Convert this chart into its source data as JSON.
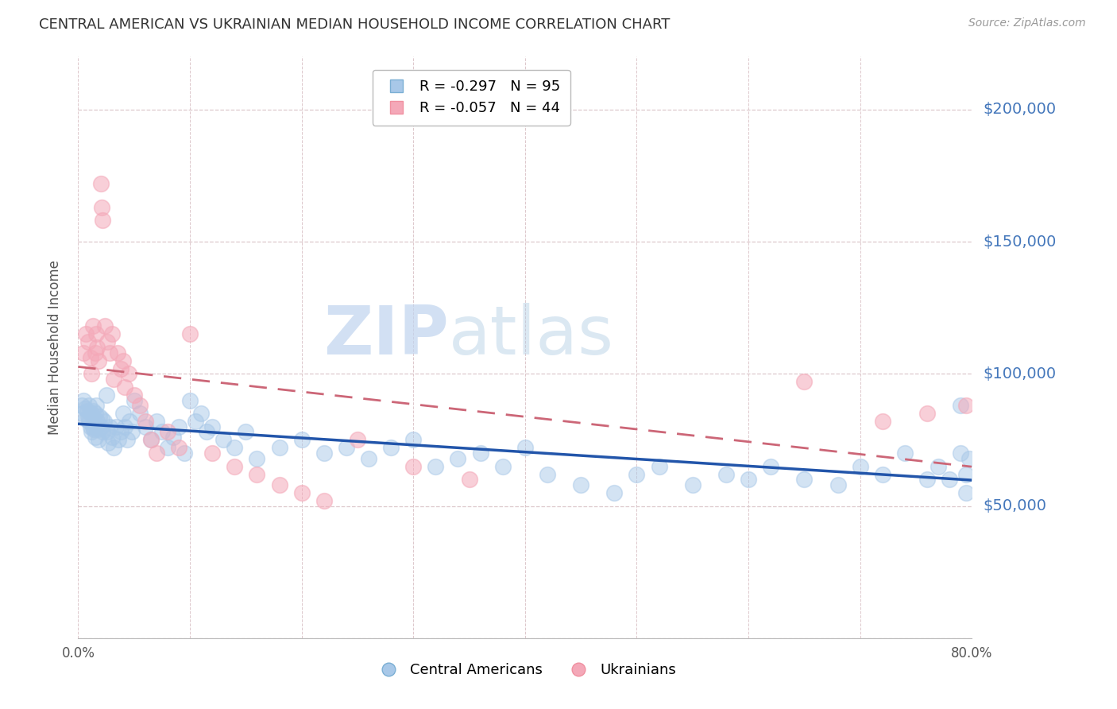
{
  "title": "CENTRAL AMERICAN VS UKRAINIAN MEDIAN HOUSEHOLD INCOME CORRELATION CHART",
  "source": "Source: ZipAtlas.com",
  "ylabel": "Median Household Income",
  "xmin": 0.0,
  "xmax": 0.8,
  "ymin": 0,
  "ymax": 220000,
  "yticks": [
    0,
    50000,
    100000,
    150000,
    200000
  ],
  "ytick_labels": [
    "",
    "$50,000",
    "$100,000",
    "$150,000",
    "$200,000"
  ],
  "xticks": [
    0.0,
    0.1,
    0.2,
    0.3,
    0.4,
    0.5,
    0.6,
    0.7,
    0.8
  ],
  "xtick_labels": [
    "0.0%",
    "",
    "",
    "",
    "",
    "",
    "",
    "",
    "80.0%"
  ],
  "watermark": "ZIPatlas",
  "blue_color": "#a8c8e8",
  "pink_color": "#f4a8b8",
  "blue_line_color": "#2255aa",
  "pink_line_color": "#cc6677",
  "title_color": "#333333",
  "axis_label_color": "#4477bb",
  "grid_color": "#ddc8cc",
  "background_color": "#ffffff",
  "central_americans_x": [
    0.003,
    0.004,
    0.005,
    0.006,
    0.007,
    0.008,
    0.009,
    0.01,
    0.01,
    0.011,
    0.012,
    0.012,
    0.013,
    0.013,
    0.014,
    0.014,
    0.015,
    0.015,
    0.016,
    0.016,
    0.017,
    0.018,
    0.018,
    0.019,
    0.02,
    0.021,
    0.022,
    0.023,
    0.025,
    0.026,
    0.027,
    0.028,
    0.03,
    0.032,
    0.034,
    0.036,
    0.038,
    0.04,
    0.042,
    0.044,
    0.046,
    0.048,
    0.05,
    0.055,
    0.06,
    0.065,
    0.07,
    0.075,
    0.08,
    0.085,
    0.09,
    0.095,
    0.1,
    0.105,
    0.11,
    0.115,
    0.12,
    0.13,
    0.14,
    0.15,
    0.16,
    0.18,
    0.2,
    0.22,
    0.24,
    0.26,
    0.28,
    0.3,
    0.32,
    0.34,
    0.36,
    0.38,
    0.4,
    0.42,
    0.45,
    0.48,
    0.5,
    0.52,
    0.55,
    0.58,
    0.6,
    0.62,
    0.65,
    0.68,
    0.7,
    0.72,
    0.74,
    0.76,
    0.77,
    0.78,
    0.79,
    0.79,
    0.795,
    0.795,
    0.798
  ],
  "central_americans_y": [
    88000,
    85000,
    90000,
    87000,
    83000,
    86000,
    84000,
    88000,
    82000,
    80000,
    85000,
    78000,
    86000,
    80000,
    83000,
    79000,
    85000,
    76000,
    88000,
    80000,
    82000,
    79000,
    75000,
    84000,
    80000,
    83000,
    78000,
    82000,
    92000,
    78000,
    74000,
    80000,
    76000,
    72000,
    80000,
    75000,
    78000,
    85000,
    80000,
    75000,
    82000,
    78000,
    90000,
    85000,
    80000,
    75000,
    82000,
    78000,
    72000,
    76000,
    80000,
    70000,
    90000,
    82000,
    85000,
    78000,
    80000,
    75000,
    72000,
    78000,
    68000,
    72000,
    75000,
    70000,
    72000,
    68000,
    72000,
    75000,
    65000,
    68000,
    70000,
    65000,
    72000,
    62000,
    58000,
    55000,
    62000,
    65000,
    58000,
    62000,
    60000,
    65000,
    60000,
    58000,
    65000,
    62000,
    70000,
    60000,
    65000,
    60000,
    88000,
    70000,
    62000,
    55000,
    68000
  ],
  "ukrainians_x": [
    0.005,
    0.007,
    0.009,
    0.011,
    0.012,
    0.013,
    0.015,
    0.016,
    0.017,
    0.018,
    0.02,
    0.021,
    0.022,
    0.024,
    0.026,
    0.028,
    0.03,
    0.032,
    0.035,
    0.038,
    0.04,
    0.042,
    0.045,
    0.05,
    0.055,
    0.06,
    0.065,
    0.07,
    0.08,
    0.09,
    0.1,
    0.12,
    0.14,
    0.16,
    0.18,
    0.2,
    0.22,
    0.25,
    0.3,
    0.35,
    0.65,
    0.72,
    0.76,
    0.795
  ],
  "ukrainians_y": [
    108000,
    115000,
    112000,
    106000,
    100000,
    118000,
    108000,
    115000,
    110000,
    105000,
    172000,
    163000,
    158000,
    118000,
    112000,
    108000,
    115000,
    98000,
    108000,
    102000,
    105000,
    95000,
    100000,
    92000,
    88000,
    82000,
    75000,
    70000,
    78000,
    72000,
    115000,
    70000,
    65000,
    62000,
    58000,
    55000,
    52000,
    75000,
    65000,
    60000,
    97000,
    82000,
    85000,
    88000
  ]
}
